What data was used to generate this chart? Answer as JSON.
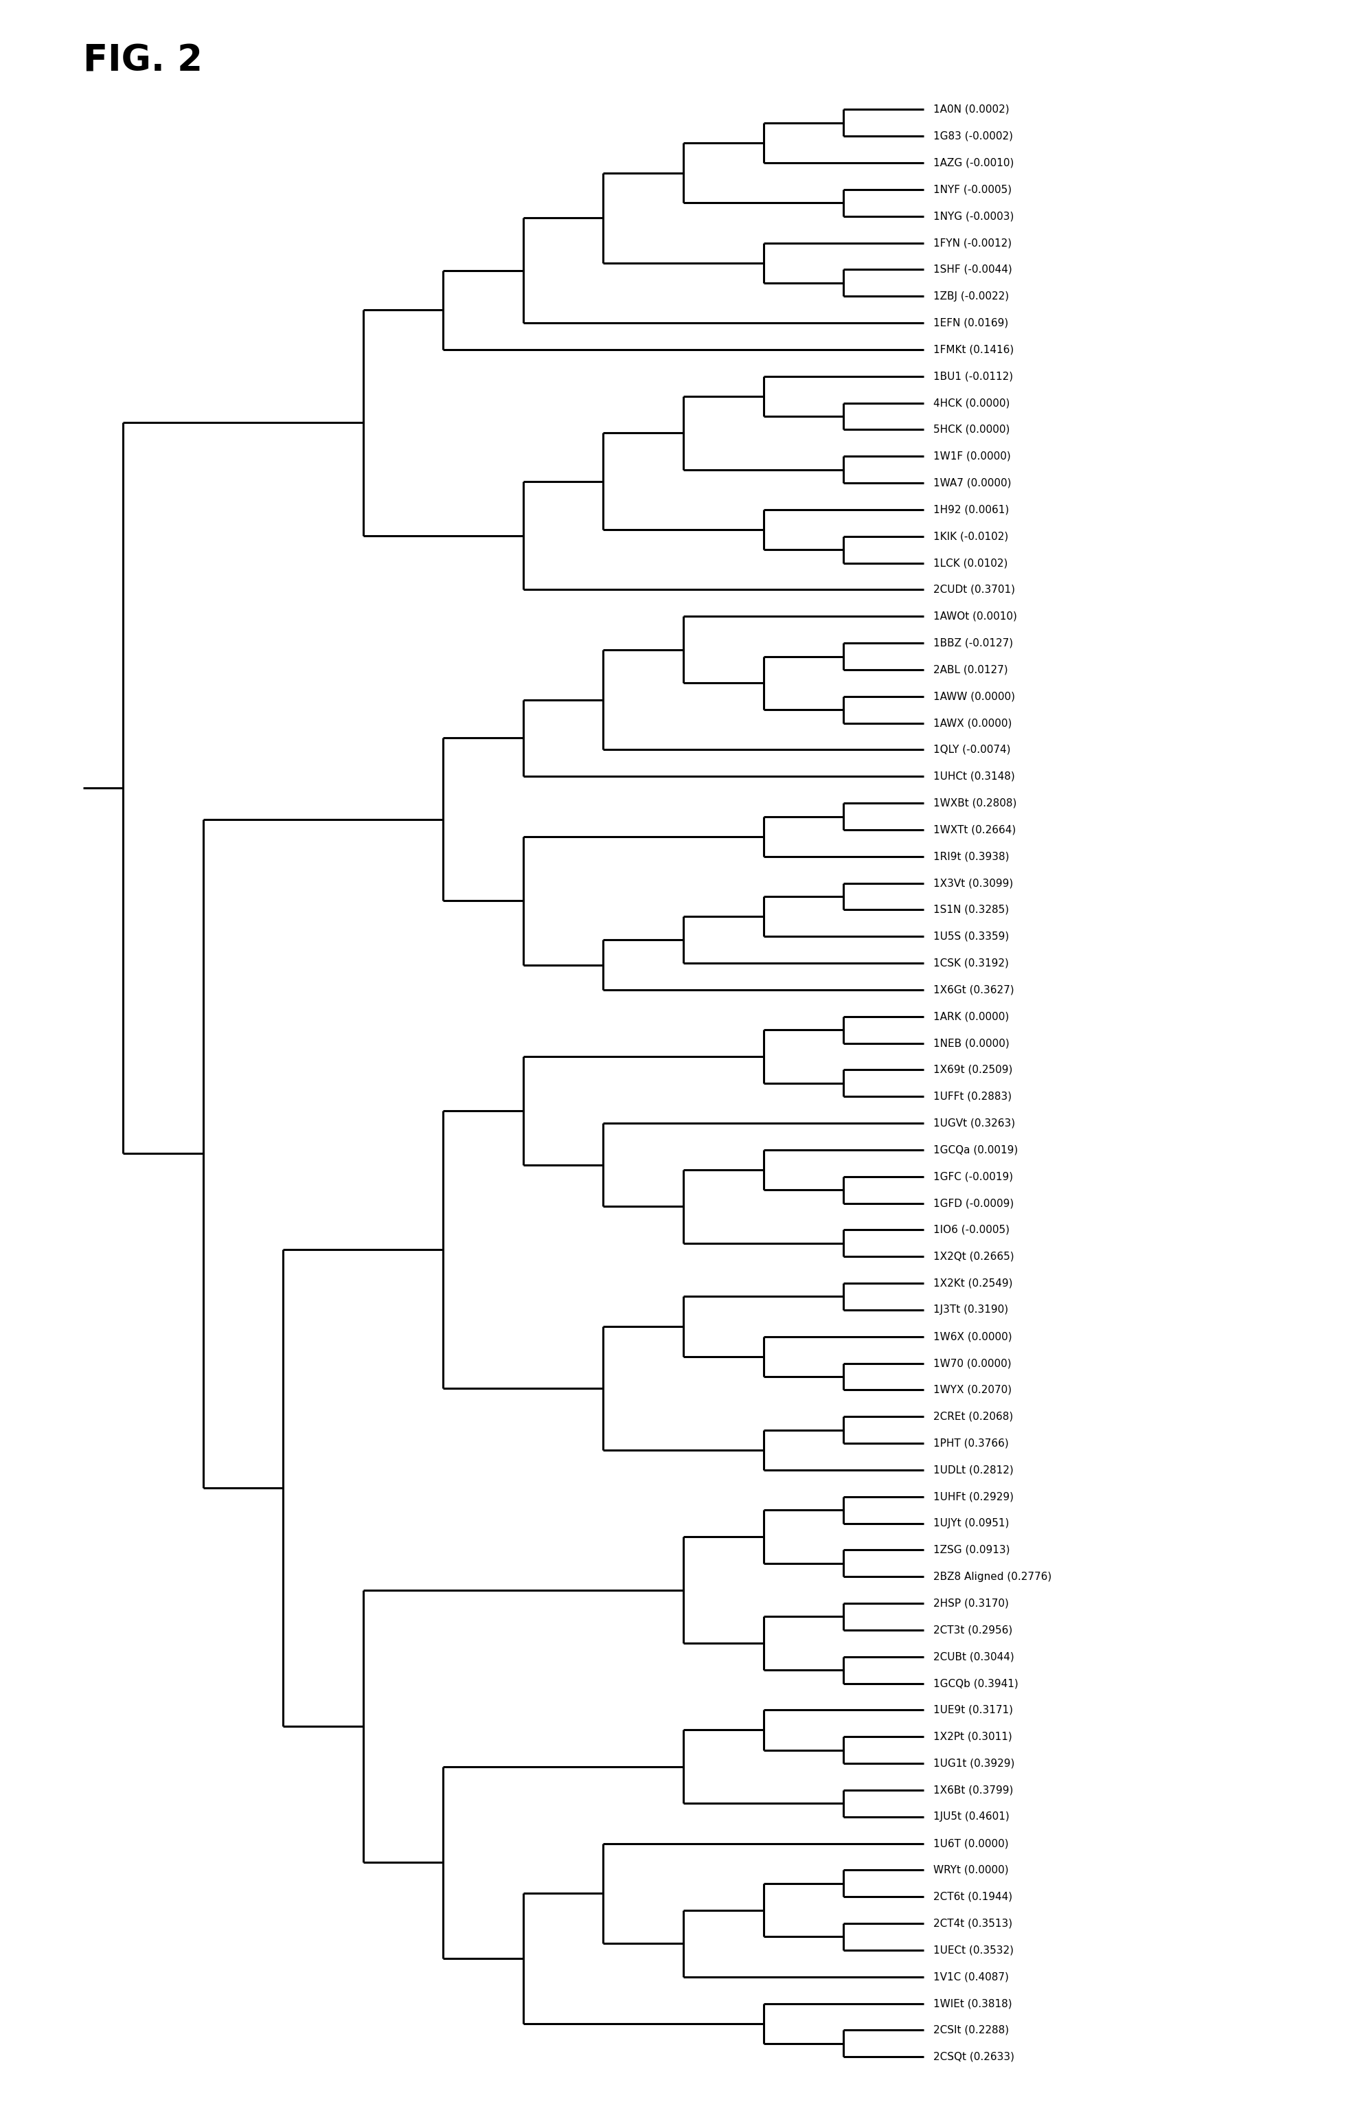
{
  "title": "FIG. 2",
  "leaf_fontsize": 11,
  "title_fontsize": 38,
  "background_color": "#ffffff",
  "line_color": "#000000",
  "line_width": 2.2,
  "leaves": [
    "1A0N (0.0002)",
    "1G83 (-0.0002)",
    "1AZG (-0.0010)",
    "1NYF (-0.0005)",
    "1NYG (-0.0003)",
    "1FYN (-0.0012)",
    "1SHF (-0.0044)",
    "1ZBJ (-0.0022)",
    "1EFN (0.0169)",
    "1FMKt (0.1416)",
    "1BU1 (-0.0112)",
    "4HCK (0.0000)",
    "5HCK (0.0000)",
    "1W1F (0.0000)",
    "1WA7 (0.0000)",
    "1H92 (0.0061)",
    "1KIK (-0.0102)",
    "1LCK (0.0102)",
    "2CUDt (0.3701)",
    "1AWOt (0.0010)",
    "1BBZ (-0.0127)",
    "2ABL (0.0127)",
    "1AWW (0.0000)",
    "1AWX (0.0000)",
    "1QLY (-0.0074)",
    "1UHCt (0.3148)",
    "1WXBt (0.2808)",
    "1WXTt (0.2664)",
    "1RI9t (0.3938)",
    "1X3Vt (0.3099)",
    "1S1N (0.3285)",
    "1U5S (0.3359)",
    "1CSK (0.3192)",
    "1X6Gt (0.3627)",
    "1ARK (0.0000)",
    "1NEB (0.0000)",
    "1X69t (0.2509)",
    "1UFFt (0.2883)",
    "1UGVt (0.3263)",
    "1GCQa (0.0019)",
    "1GFC (-0.0019)",
    "1GFD (-0.0009)",
    "1IO6 (-0.0005)",
    "1X2Qt (0.2665)",
    "1X2Kt (0.2549)",
    "1J3Tt (0.3190)",
    "1W6X (0.0000)",
    "1W70 (0.0000)",
    "1WYX (0.2070)",
    "2CREt (0.2068)",
    "1PHT (0.3766)",
    "1UDLt (0.2812)",
    "1UHFt (0.2929)",
    "1UJYt (0.0951)",
    "1ZSG (0.0913)",
    "2BZ8 Aligned (0.2776)",
    "2HSP (0.3170)",
    "2CT3t (0.2956)",
    "2CUBt (0.3044)",
    "1GCQb (0.3941)",
    "1UE9t (0.3171)",
    "1X2Pt (0.3011)",
    "1UG1t (0.3929)",
    "1X6Bt (0.3799)",
    "1JU5t (0.4601)",
    "1U6T (0.0000)",
    "WRYt (0.0000)",
    "2CT6t (0.1944)",
    "2CT4t (0.3513)",
    "1UECt (0.3532)",
    "1V1C (0.4087)",
    "1WIEt (0.3818)",
    "2CSIt (0.2288)",
    "2CSQt (0.2633)"
  ]
}
